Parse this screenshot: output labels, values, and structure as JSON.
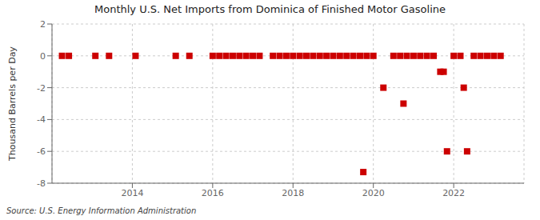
{
  "chart_data": {
    "type": "scatter",
    "title": "Monthly U.S. Net Imports from Dominica of Finished Motor Gasoline",
    "ylabel": "Thousand Barrels per Day",
    "annotations": [
      "Source: U.S. Energy Information Administration"
    ],
    "x": [
      2012.25,
      2012.42,
      2013.08,
      2013.42,
      2014.08,
      2015.08,
      2015.42,
      2016.0,
      2016.1667,
      2016.3333,
      2016.5,
      2016.6667,
      2016.8333,
      2017.0,
      2017.1667,
      2017.5,
      2017.6667,
      2017.8333,
      2018.0,
      2018.1667,
      2018.3333,
      2018.5,
      2018.6667,
      2018.8333,
      2019.0,
      2019.1667,
      2019.3333,
      2019.5,
      2019.6667,
      2019.8333,
      2019.75,
      2020.0,
      2020.25,
      2020.5,
      2020.6667,
      2020.75,
      2020.8333,
      2021.0,
      2021.1667,
      2021.3333,
      2021.5,
      2021.6667,
      2021.75,
      2021.8333,
      2022.0,
      2022.1667,
      2022.25,
      2022.3333,
      2022.5,
      2022.6667,
      2022.8333,
      2023.0,
      2023.1667
    ],
    "values": [
      0,
      0,
      0,
      0,
      0,
      0,
      0,
      0,
      0,
      0,
      0,
      0,
      0,
      0,
      0,
      0,
      0,
      0,
      0,
      0,
      0,
      0,
      0,
      0,
      0,
      0,
      0,
      0,
      0,
      0,
      -7.3,
      0,
      -2.0,
      0,
      0,
      -3.0,
      0,
      0,
      0,
      0,
      0,
      -1.0,
      -1.0,
      -6.0,
      0,
      0,
      -2.0,
      -6.0,
      0,
      0,
      0,
      0,
      0
    ],
    "color": "#cc0000",
    "marker": "square",
    "xlim": [
      2012.0,
      2023.75
    ],
    "xticks": [
      2014,
      2016,
      2018,
      2020,
      2022
    ],
    "ylim": [
      -8,
      2
    ],
    "yticks": [
      -8,
      -6,
      -4,
      -2,
      0,
      2
    ],
    "grid": true
  }
}
